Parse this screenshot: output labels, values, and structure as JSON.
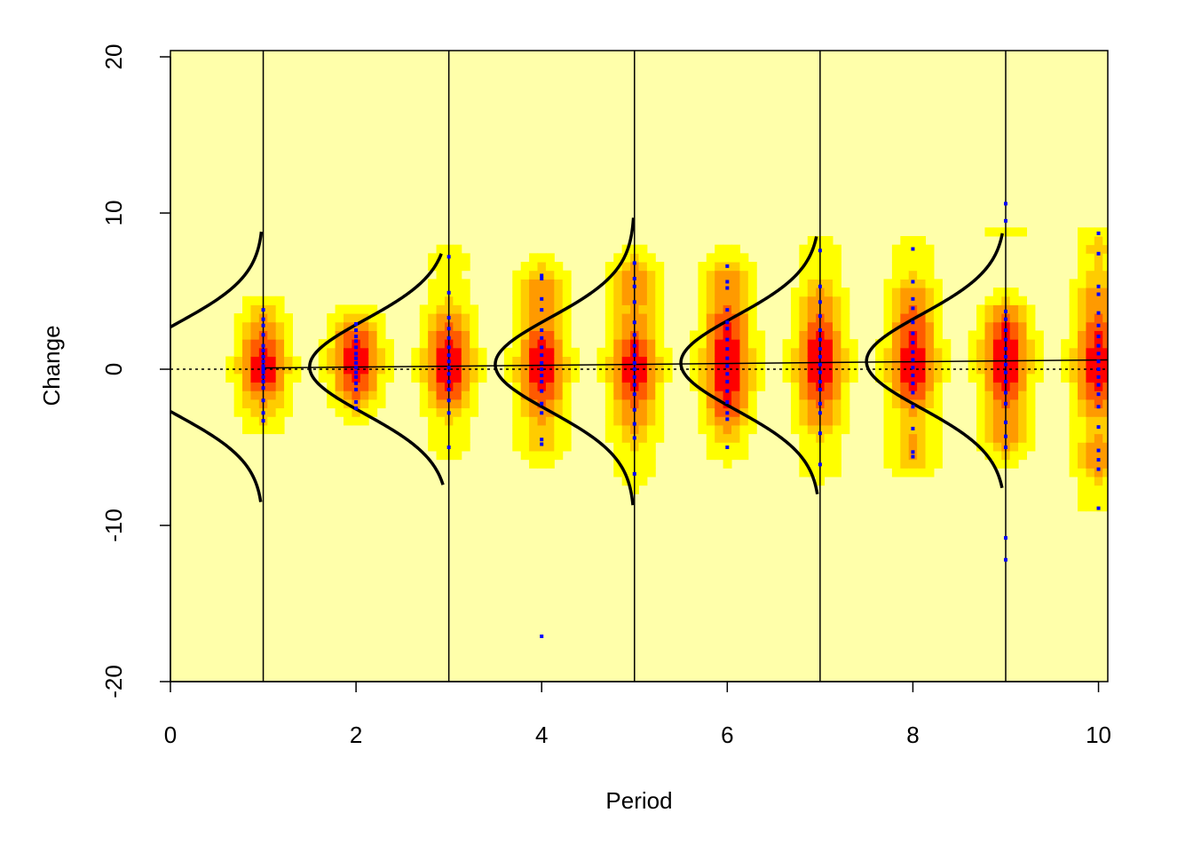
{
  "chart_data": {
    "type": "scatter",
    "x_label": "Period",
    "y_label": "Change",
    "xlim": [
      0,
      10.1
    ],
    "ylim": [
      -20,
      20.4
    ],
    "xticks": [
      0,
      2,
      4,
      6,
      8,
      10
    ],
    "yticks": [
      -20,
      -10,
      0,
      10,
      20
    ],
    "background": "#ffffaa",
    "point_color": "#0000ff",
    "reference_line": 0,
    "trend": {
      "x": [
        1,
        10.1
      ],
      "y": [
        0.08,
        0.6
      ]
    },
    "curves": [
      {
        "base": 1,
        "mean": 0,
        "sd": 3,
        "depth": 1.5,
        "range": [
          -8.5,
          8.8
        ]
      },
      {
        "base": 3,
        "mean": 0.15,
        "sd": 3,
        "depth": 1.5,
        "range": [
          -7.4,
          7.4
        ]
      },
      {
        "base": 5,
        "mean": 0.3,
        "sd": 3,
        "depth": 1.5,
        "range": [
          -8.7,
          9.7
        ]
      },
      {
        "base": 7,
        "mean": 0.4,
        "sd": 3,
        "depth": 1.5,
        "range": [
          -8,
          8.5
        ]
      },
      {
        "base": 9,
        "mean": 0.5,
        "sd": 3,
        "depth": 1.5,
        "range": [
          -7.6,
          8.7
        ]
      }
    ],
    "groups": [
      {
        "x": 1,
        "values": [
          3.8,
          3.2,
          2.8,
          2.2,
          1.5,
          1.2,
          0.8,
          0.5,
          0.2,
          0,
          -0.2,
          -0.5,
          -0.8,
          -1.2,
          -2,
          -2.8,
          -3.3
        ]
      },
      {
        "x": 2,
        "values": [
          2.9,
          2.5,
          2.1,
          1.8,
          1.4,
          1,
          0.7,
          0.4,
          0.1,
          -0.2,
          -0.5,
          -0.9,
          -1.3,
          -2.1,
          -2.5
        ]
      },
      {
        "x": 3,
        "values": [
          7.2,
          4.9,
          3.3,
          2.6,
          2,
          1.4,
          0.9,
          0.5,
          0.1,
          -0.3,
          -0.8,
          -1.3,
          -2,
          -2.8,
          -5
        ]
      },
      {
        "x": 4,
        "values": [
          6,
          5.8,
          4.5,
          3.8,
          2.5,
          2,
          1.4,
          0.9,
          0.4,
          0,
          -0.4,
          -0.8,
          -1.4,
          -2.2,
          -2.8,
          -4.5,
          -4.8,
          -17.1
        ]
      },
      {
        "x": 5,
        "values": [
          6.8,
          5.8,
          5.3,
          4.3,
          3,
          2.2,
          1.5,
          0.9,
          0.4,
          0,
          -0.5,
          -1,
          -1.6,
          -2.6,
          -3.5,
          -4.4,
          -6.7
        ]
      },
      {
        "x": 6,
        "values": [
          6.6,
          5.6,
          5.2,
          3.8,
          3,
          2.6,
          1.9,
          1.3,
          0.7,
          0.2,
          -0.3,
          -0.8,
          -1.4,
          -2.1,
          -2.8,
          -3.2,
          -5
        ]
      },
      {
        "x": 7,
        "values": [
          7.6,
          5.3,
          4.3,
          3.4,
          2.5,
          1.9,
          1.3,
          0.8,
          0.3,
          -0.2,
          -0.8,
          -1.3,
          -2.2,
          -2.8,
          -4.1,
          -6.1
        ]
      },
      {
        "x": 8,
        "values": [
          7.7,
          5.6,
          4.5,
          3.9,
          3,
          2.3,
          1.7,
          1.1,
          0.6,
          0.1,
          -0.4,
          -0.9,
          -1.5,
          -2.4,
          -3.8,
          -5.3,
          -5.6
        ]
      },
      {
        "x": 9,
        "values": [
          10.6,
          9.5,
          3.7,
          3.2,
          2.5,
          1.9,
          1.3,
          0.8,
          0.3,
          -0.2,
          -0.8,
          -1.5,
          -2.2,
          -3.4,
          -4.3,
          -5,
          -10.8,
          -12.2
        ]
      },
      {
        "x": 10,
        "values": [
          8.7,
          7.4,
          5.3,
          4.8,
          3.6,
          2.8,
          2.1,
          1.5,
          1,
          0.5,
          0,
          -0.5,
          -1,
          -1.6,
          -2.4,
          -3.7,
          -5.2,
          -5.8,
          -6.4,
          -8.9
        ]
      }
    ]
  }
}
